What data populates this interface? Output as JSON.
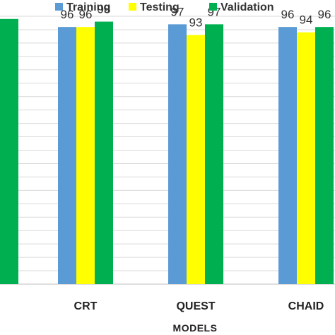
{
  "chart_data": {
    "type": "bar",
    "title": "",
    "xlabel": "MODELS",
    "ylabel": "",
    "categories": [
      "",
      "CRT",
      "QUEST",
      "CHAID"
    ],
    "series": [
      {
        "name": "Training",
        "color": "#5b9bd5",
        "values": [
          null,
          96,
          97,
          96
        ]
      },
      {
        "name": "Testing",
        "color": "#ffff00",
        "values": [
          null,
          96,
          93,
          94
        ]
      },
      {
        "name": "Validation",
        "color": "#00b050",
        "values": [
          99,
          98,
          97,
          96
        ]
      }
    ],
    "ylim": [
      0,
      100
    ],
    "grid": true,
    "legend_position": "top"
  }
}
